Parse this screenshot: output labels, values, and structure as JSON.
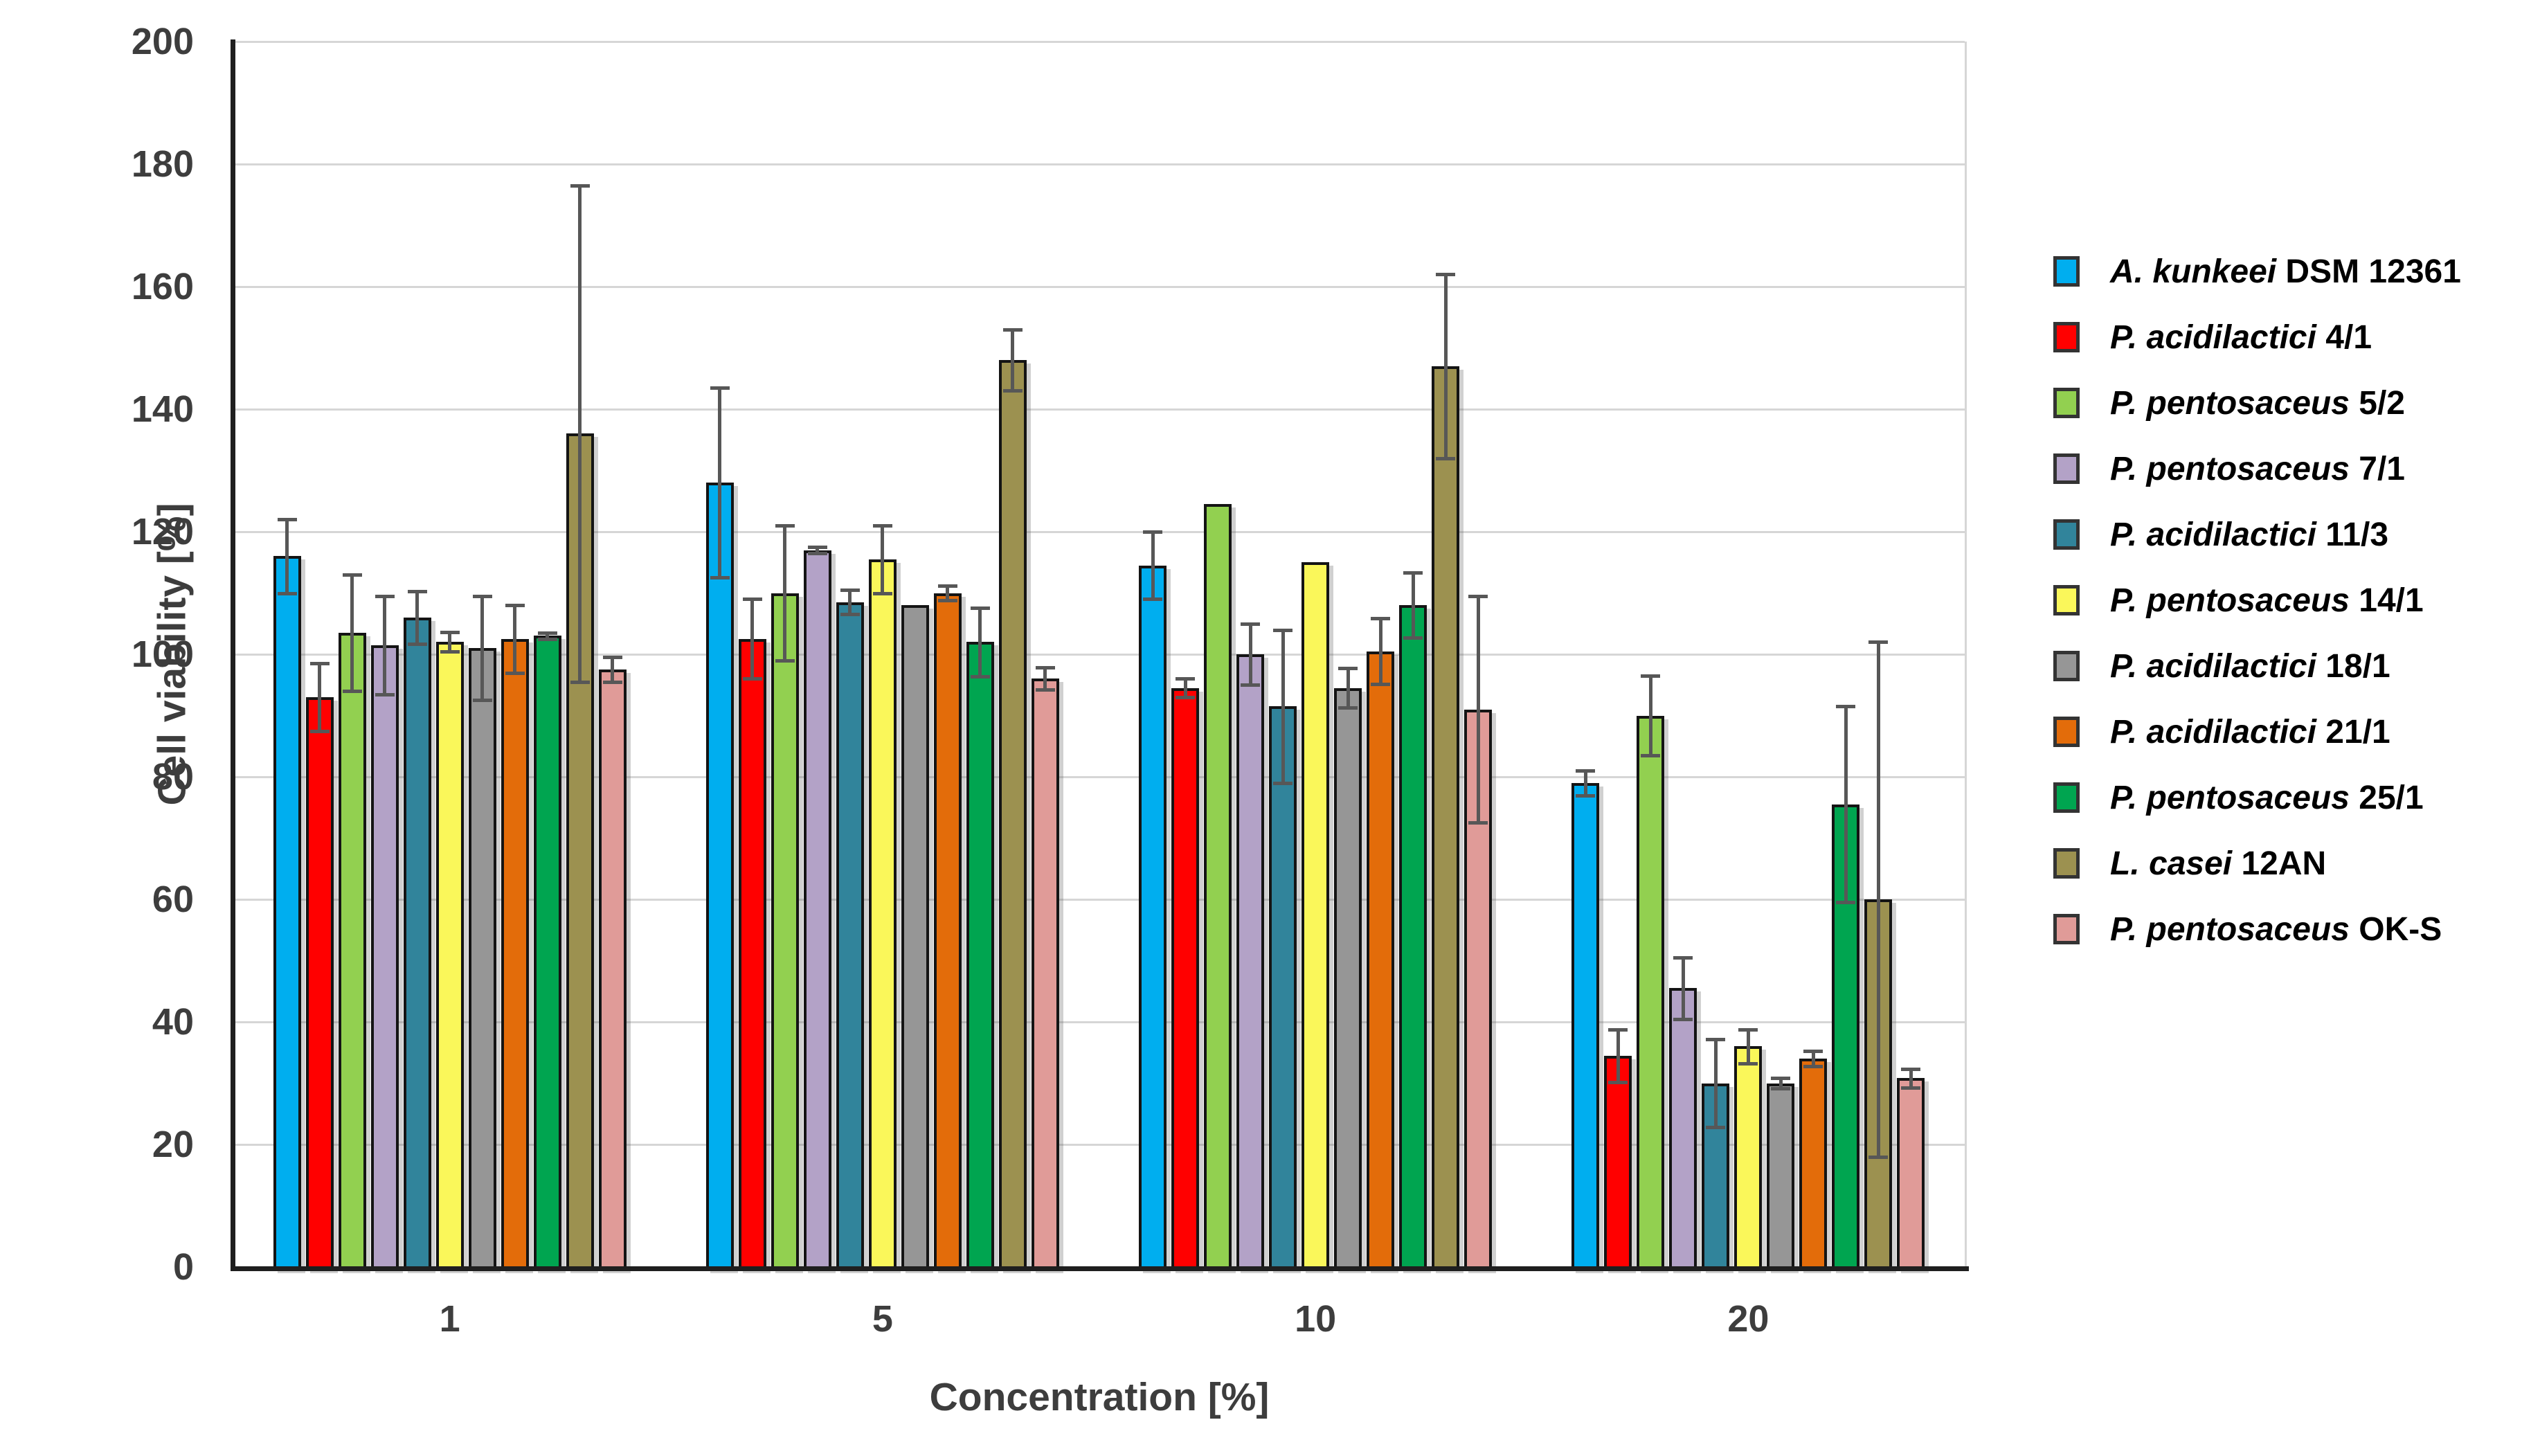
{
  "chart_data": {
    "type": "bar",
    "title": "",
    "xlabel": "Concentration [%]",
    "ylabel": "Cell viability [%]",
    "categories": [
      "1",
      "5",
      "10",
      "20"
    ],
    "y_tick_labels": [
      "0",
      "20",
      "40",
      "60",
      "80",
      "100",
      "120",
      "140",
      "160",
      "180",
      "200"
    ],
    "ylim": [
      0,
      200
    ],
    "grid": "horizontal-every-20",
    "legend_position": "right-outside",
    "error_bar_color": "#575757",
    "bar_border_color": "#141414",
    "series": [
      {
        "species": "A. kunkeei",
        "strain": "DSM 12361",
        "color": "#00AEEF",
        "values": [
          116,
          128,
          114.5,
          79
        ],
        "errors": [
          6,
          15.5,
          5.5,
          2
        ]
      },
      {
        "species": "P. acidilactici",
        "strain": "4/1",
        "color": "#FF0000",
        "values": [
          93,
          102.5,
          94.5,
          34.5
        ],
        "errors": [
          5.5,
          6.5,
          1.5,
          4.3
        ]
      },
      {
        "species": "P. pentosaceus",
        "strain": "5/2",
        "color": "#92D050",
        "values": [
          103.5,
          110,
          124.5,
          90
        ],
        "errors": [
          9.5,
          11,
          0,
          6.5
        ]
      },
      {
        "species": "P. pentosaceus",
        "strain": "7/1",
        "color": "#B3A2C7",
        "values": [
          101.5,
          117,
          100,
          45.5
        ],
        "errors": [
          8,
          0.5,
          5,
          5
        ]
      },
      {
        "species": "P. acidilactici",
        "strain": "11/3",
        "color": "#31849B",
        "values": [
          106,
          108.5,
          91.5,
          30
        ],
        "errors": [
          4.3,
          2,
          12.5,
          7.2
        ]
      },
      {
        "species": "P. pentosaceus",
        "strain": "14/1",
        "color": "#FAF75A",
        "values": [
          102,
          115.5,
          115,
          36
        ],
        "errors": [
          1.6,
          5.5,
          0,
          2.8
        ]
      },
      {
        "species": "P. acidilactici",
        "strain": "18/1",
        "color": "#969696",
        "values": [
          101,
          108,
          94.5,
          30
        ],
        "errors": [
          8.5,
          0,
          3.2,
          0.8
        ]
      },
      {
        "species": "P. acidilactici",
        "strain": "21/1",
        "color": "#E36C0A",
        "values": [
          102.5,
          110,
          100.5,
          34
        ],
        "errors": [
          5.5,
          1.2,
          5.4,
          1.2
        ]
      },
      {
        "species": "P. pentosaceus",
        "strain": "25/1",
        "color": "#00A550",
        "values": [
          103,
          102,
          108,
          75.5
        ],
        "errors": [
          0.5,
          5.6,
          5.3,
          16
        ]
      },
      {
        "species": "L. casei",
        "strain": "12AN",
        "color": "#9C9150",
        "values": [
          136,
          148,
          147,
          60
        ],
        "errors": [
          40.5,
          5,
          15,
          42
        ]
      },
      {
        "species": "P. pentosaceus",
        "strain": "OK-S",
        "color": "#E09B98",
        "values": [
          97.5,
          96,
          91,
          30.8
        ],
        "errors": [
          2,
          1.8,
          18.5,
          1.5
        ]
      }
    ]
  }
}
